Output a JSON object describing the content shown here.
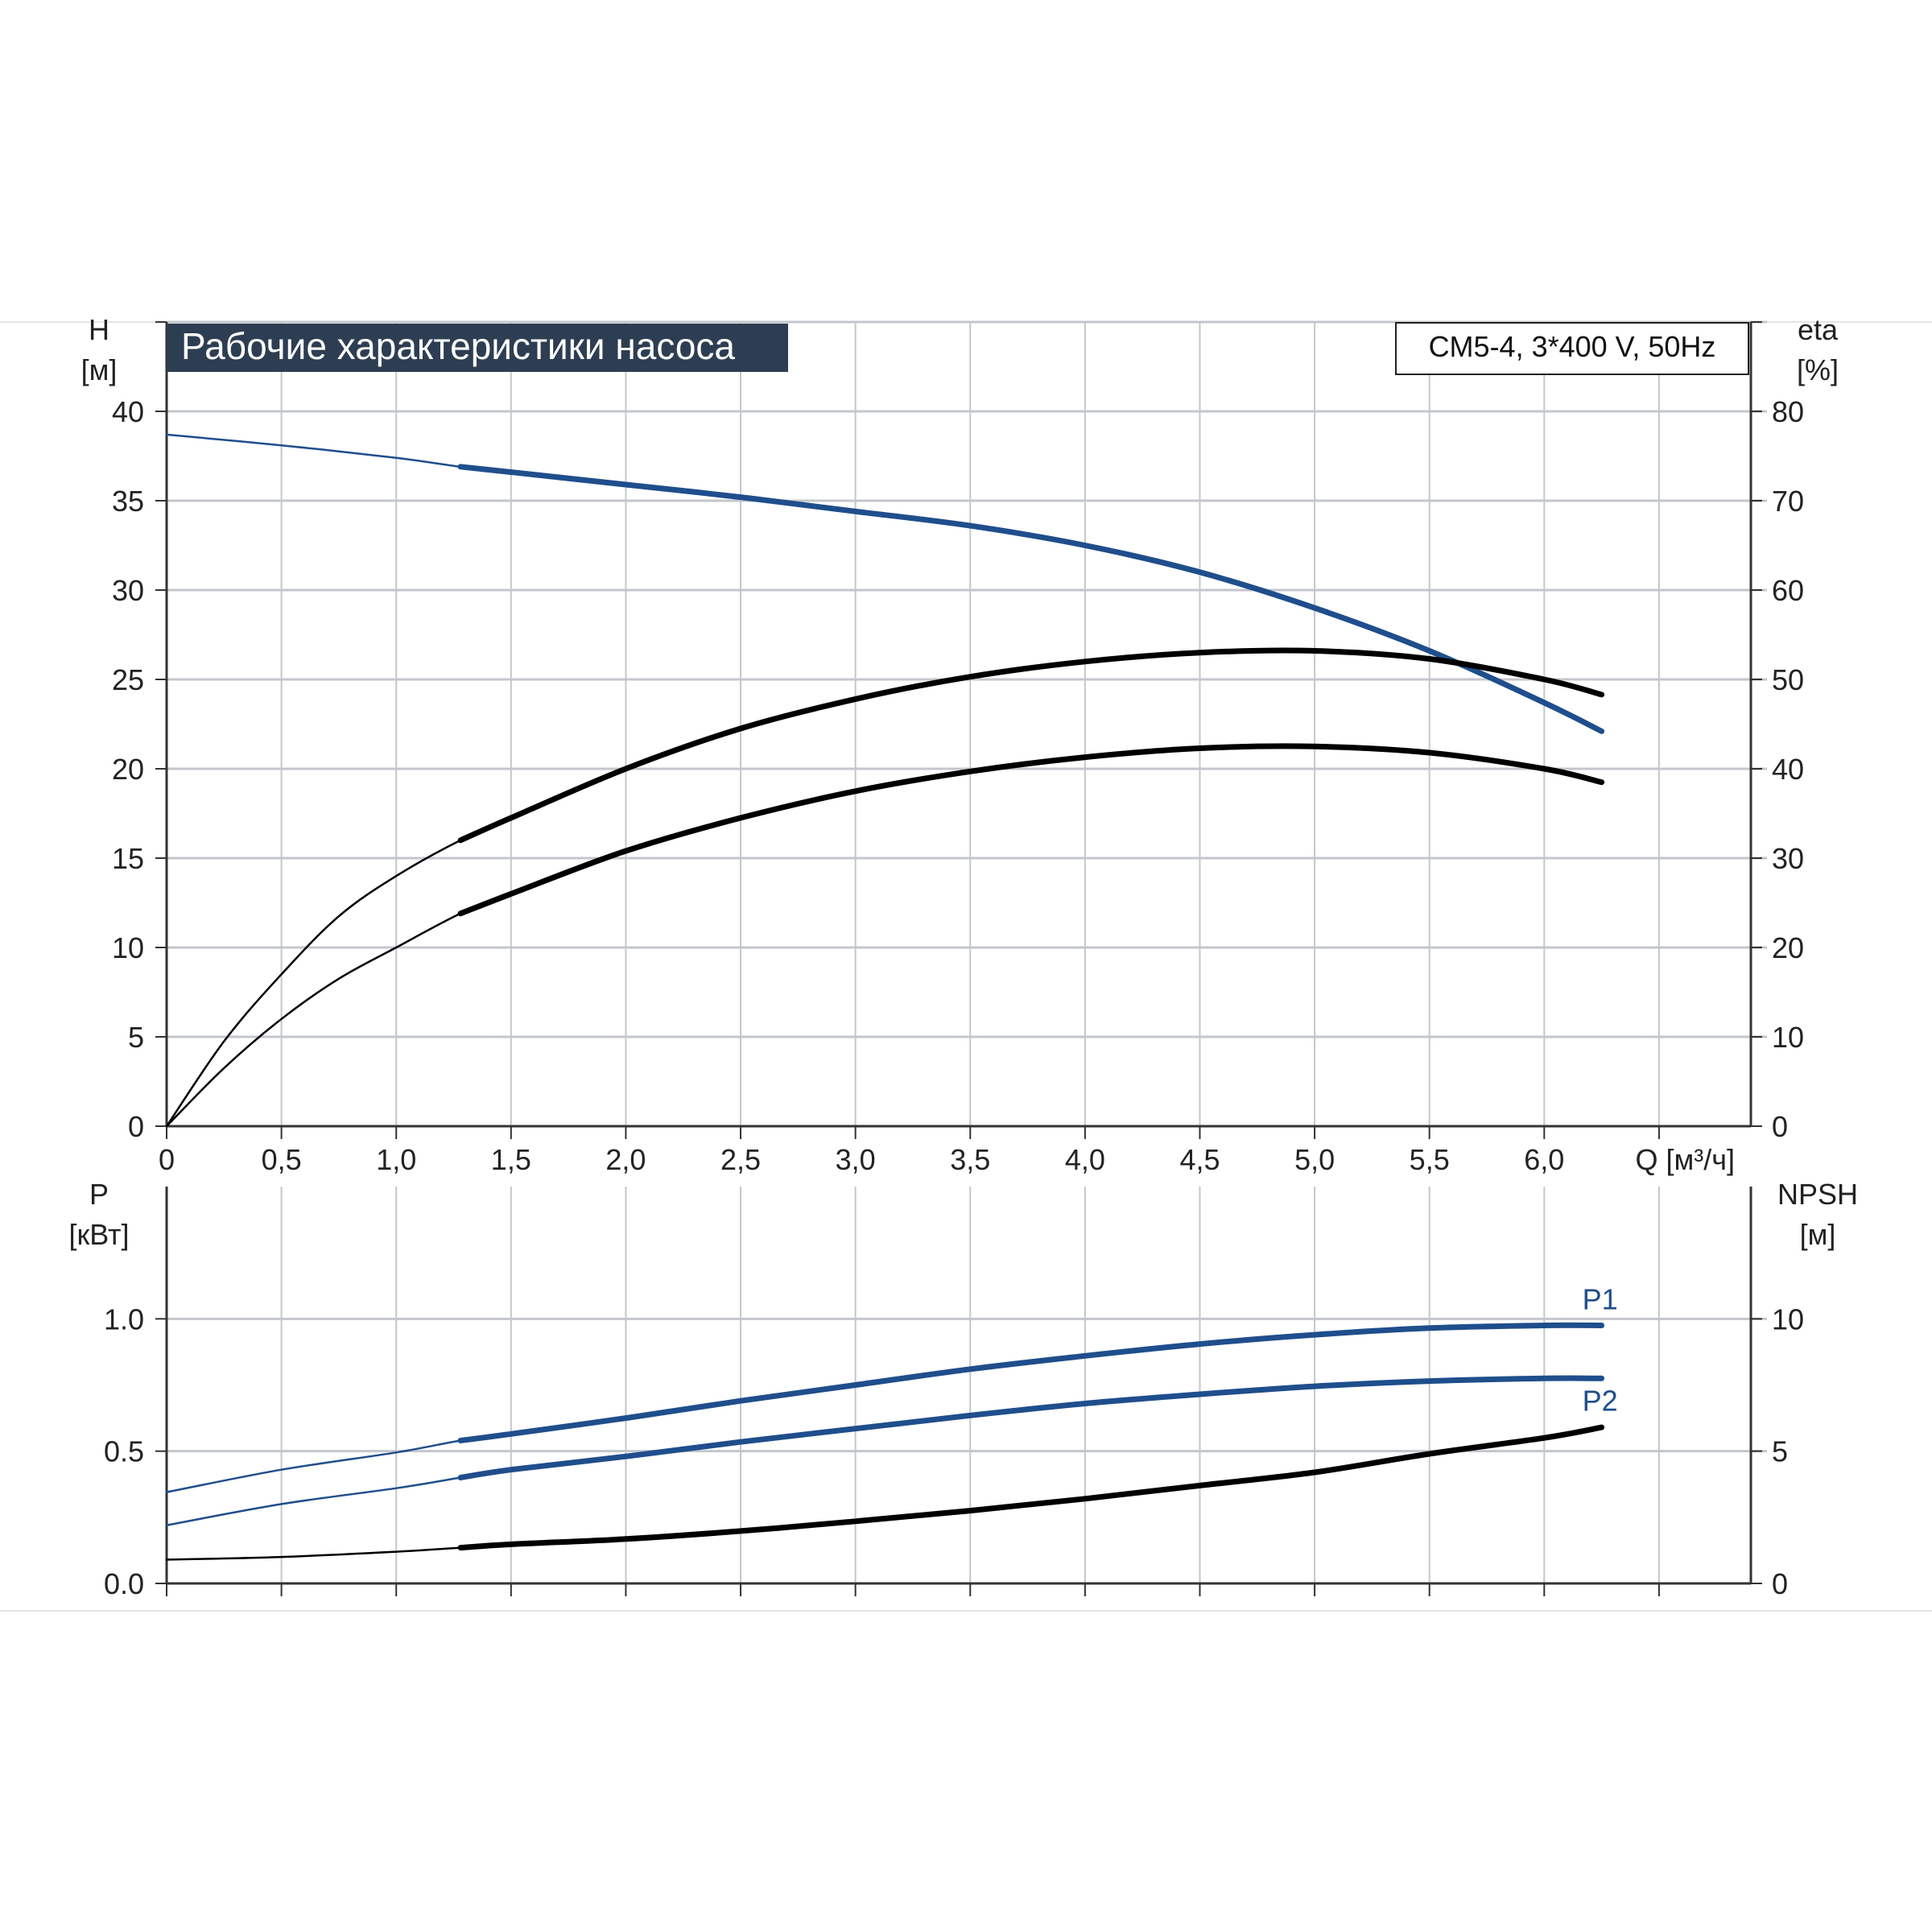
{
  "title_badge": "Рабочие характеристики насоса",
  "model_label": "CM5-4, 3*400 V, 50Hz",
  "colors": {
    "blue": "#1f4e8c",
    "black": "#000000",
    "grid": "#c3c7cc",
    "badge_bg": "#2e3e52",
    "badge_text": "#ffffff"
  },
  "x_axis": {
    "label": "Q [м³/ч]",
    "range": [
      0,
      6.9
    ],
    "ticks": [
      0,
      0.5,
      1.0,
      1.5,
      2.0,
      2.5,
      3.0,
      3.5,
      4.0,
      4.5,
      5.0,
      5.5,
      6.0,
      6.5
    ],
    "tick_labels": [
      "0",
      "0,5",
      "1,0",
      "1,5",
      "2,0",
      "2,5",
      "3,0",
      "3,5",
      "4,0",
      "4,5",
      "5,0",
      "5,5",
      "6,0",
      ""
    ]
  },
  "chart_data": [
    {
      "type": "line",
      "title": "Рабочие характеристики насоса",
      "annotation": "CM5-4, 3*400 V, 50Hz",
      "y_left": {
        "label_line1": "H",
        "label_line2": "[м]",
        "range": [
          0,
          45
        ],
        "ticks": [
          0,
          5,
          10,
          15,
          20,
          25,
          30,
          35,
          40,
          45
        ],
        "tick_labels": [
          "0",
          "5",
          "10",
          "15",
          "20",
          "25",
          "30",
          "35",
          "40",
          ""
        ]
      },
      "y_right": {
        "label_line1": "eta",
        "label_line2": "[%]",
        "range": [
          0,
          90
        ],
        "ticks": [
          0,
          10,
          20,
          30,
          40,
          50,
          60,
          70,
          80,
          90
        ],
        "tick_labels": [
          "0",
          "10",
          "20",
          "30",
          "40",
          "50",
          "60",
          "70",
          "80",
          ""
        ]
      },
      "grid": true,
      "series": [
        {
          "axis": "left",
          "color": "blue",
          "x": [
            0,
            0.5,
            1.0,
            1.28,
            1.5,
            2.0,
            2.5,
            3.0,
            3.5,
            4.0,
            4.5,
            5.0,
            5.5,
            6.0,
            6.25
          ],
          "y": [
            38.7,
            38.1,
            37.4,
            36.9,
            36.6,
            35.9,
            35.2,
            34.4,
            33.6,
            32.5,
            31.0,
            29.0,
            26.6,
            23.7,
            22.1
          ],
          "op_start": 1.28
        },
        {
          "axis": "right",
          "color": "black",
          "x": [
            0,
            0.25,
            0.5,
            0.75,
            1.0,
            1.28,
            1.5,
            2.0,
            2.5,
            3.0,
            3.5,
            4.0,
            4.5,
            5.0,
            5.5,
            6.0,
            6.25
          ],
          "y": [
            0,
            9.5,
            17.0,
            23.5,
            28.0,
            32.0,
            34.5,
            40.0,
            44.5,
            47.8,
            50.3,
            52.0,
            53.0,
            53.2,
            52.3,
            50.0,
            48.3
          ],
          "op_start": 1.28
        },
        {
          "axis": "right",
          "color": "black",
          "x": [
            0,
            0.25,
            0.5,
            0.75,
            1.0,
            1.28,
            1.5,
            2.0,
            2.5,
            3.0,
            3.5,
            4.0,
            4.5,
            5.0,
            5.5,
            6.0,
            6.25
          ],
          "y": [
            0,
            6.5,
            12.0,
            16.5,
            20.0,
            23.8,
            26.0,
            30.8,
            34.5,
            37.5,
            39.7,
            41.3,
            42.3,
            42.5,
            41.8,
            40.0,
            38.5
          ],
          "op_start": 1.28
        }
      ]
    },
    {
      "type": "line",
      "y_left": {
        "label_line1": "P",
        "label_line2": "[кВт]",
        "range": [
          0,
          1.5
        ],
        "ticks": [
          0,
          0.5,
          1.0
        ],
        "tick_labels": [
          "0.0",
          "0.5",
          "1.0"
        ]
      },
      "y_right": {
        "label_line1": "NPSH",
        "label_line2": "[м]",
        "range": [
          0,
          15
        ],
        "ticks": [
          0,
          5,
          10
        ],
        "tick_labels": [
          "0",
          "5",
          "10"
        ]
      },
      "grid": true,
      "series": [
        {
          "name": "P1",
          "axis": "left",
          "color": "blue",
          "x": [
            0,
            0.5,
            1.0,
            1.28,
            1.5,
            2.0,
            2.5,
            3.0,
            3.5,
            4.0,
            4.5,
            5.0,
            5.5,
            6.0,
            6.25
          ],
          "y": [
            0.345,
            0.43,
            0.495,
            0.54,
            0.565,
            0.625,
            0.69,
            0.75,
            0.81,
            0.86,
            0.905,
            0.94,
            0.965,
            0.975,
            0.975
          ],
          "op_start": 1.28
        },
        {
          "name": "P2",
          "axis": "left",
          "color": "blue",
          "x": [
            0,
            0.5,
            1.0,
            1.28,
            1.5,
            2.0,
            2.5,
            3.0,
            3.5,
            4.0,
            4.5,
            5.0,
            5.5,
            6.0,
            6.25
          ],
          "y": [
            0.22,
            0.3,
            0.36,
            0.4,
            0.43,
            0.48,
            0.535,
            0.585,
            0.635,
            0.68,
            0.715,
            0.745,
            0.765,
            0.775,
            0.775
          ],
          "op_start": 1.28
        },
        {
          "axis": "right",
          "color": "black",
          "x": [
            0,
            0.5,
            1.0,
            1.28,
            1.5,
            2.0,
            2.5,
            3.0,
            3.5,
            4.0,
            4.5,
            5.0,
            5.5,
            6.0,
            6.25
          ],
          "y": [
            0.9,
            1.0,
            1.2,
            1.35,
            1.48,
            1.68,
            1.98,
            2.35,
            2.75,
            3.2,
            3.7,
            4.2,
            4.9,
            5.5,
            5.9
          ],
          "op_start": 1.28
        }
      ]
    }
  ]
}
